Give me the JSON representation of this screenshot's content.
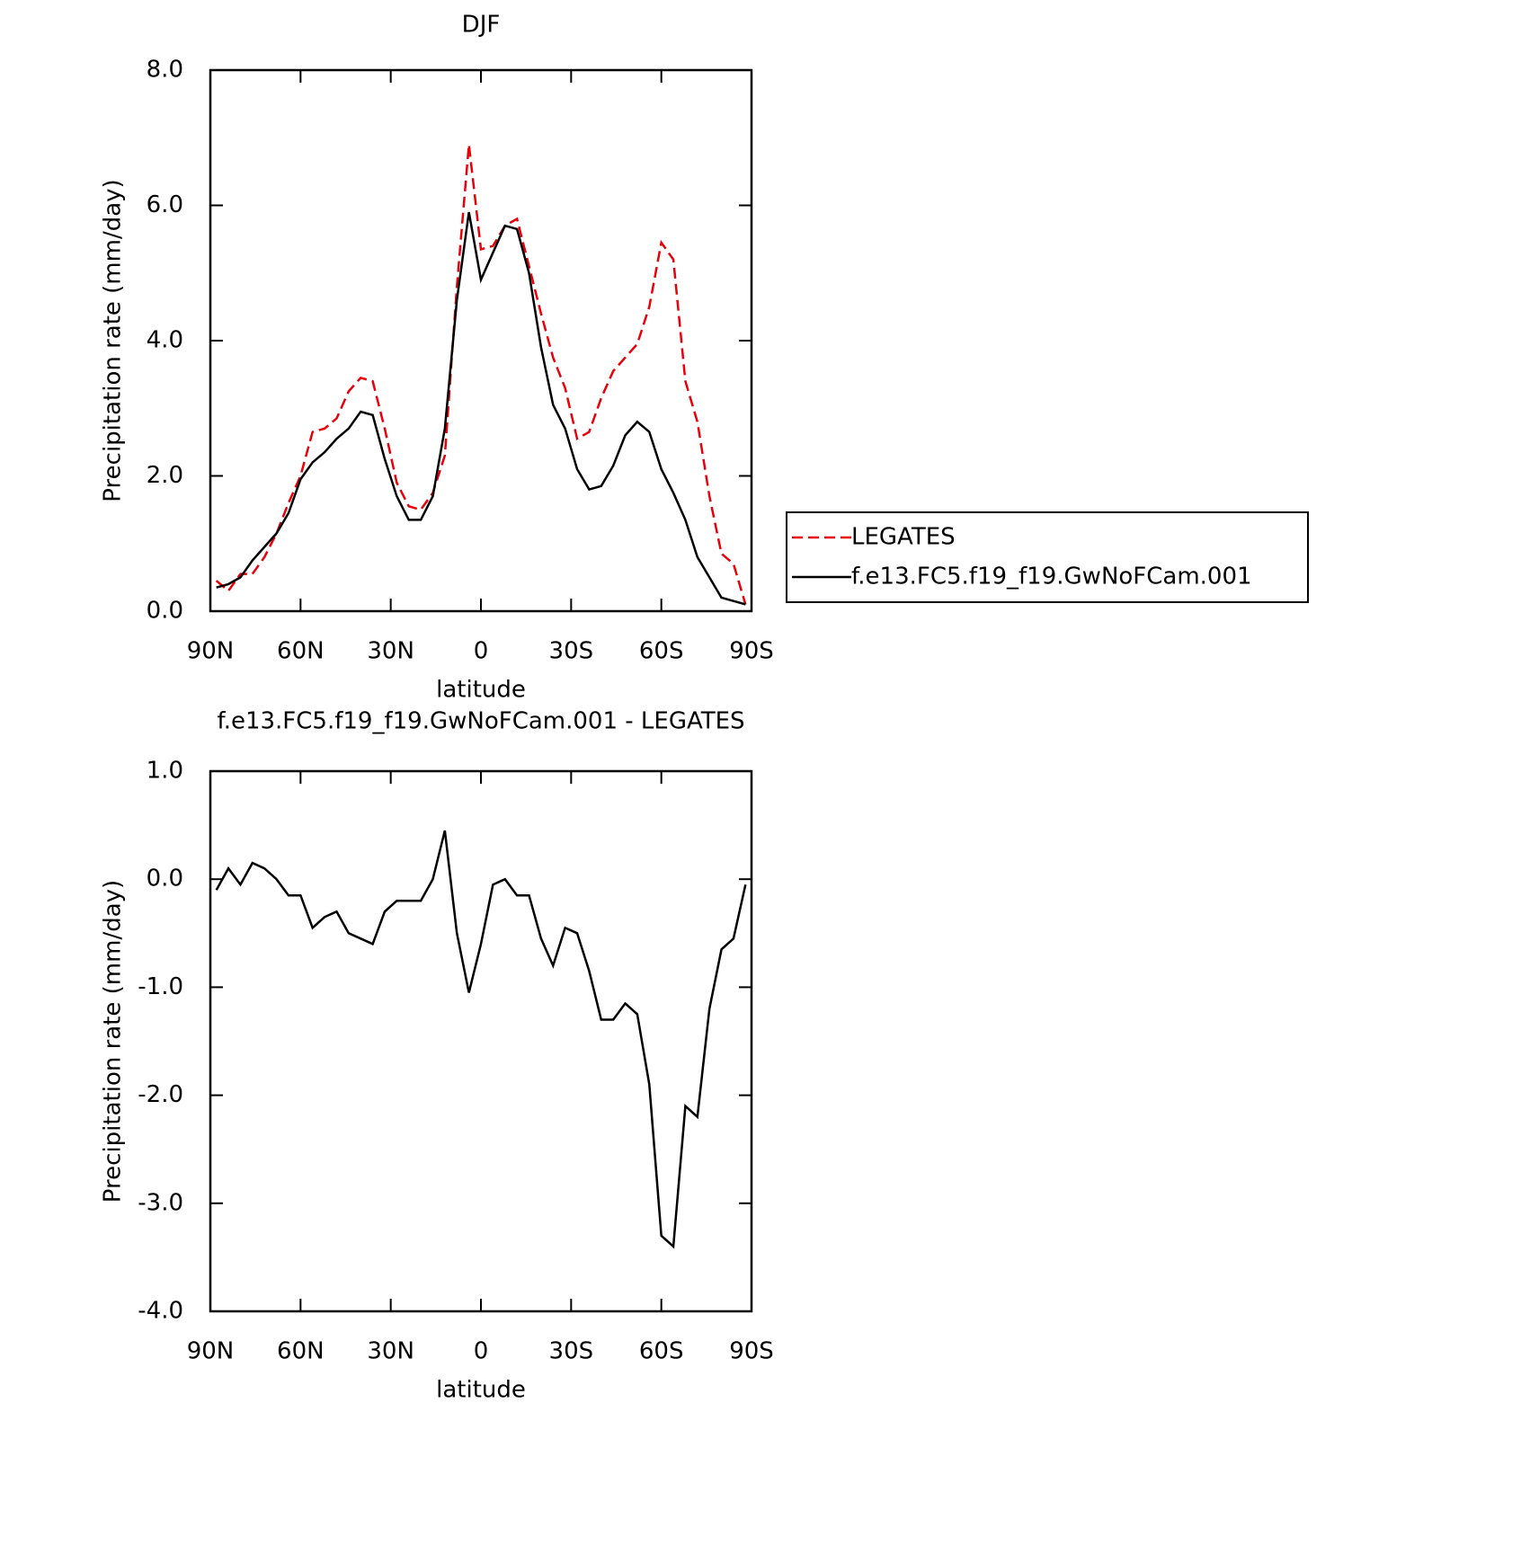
{
  "chart_data": [
    {
      "type": "line",
      "title": "DJF",
      "xlabel": "latitude",
      "ylabel": "Precipitation rate (mm/day)",
      "x": [
        88,
        84,
        80,
        76,
        72,
        68,
        64,
        60,
        56,
        52,
        48,
        44,
        40,
        36,
        32,
        28,
        24,
        20,
        16,
        12,
        8,
        4,
        0,
        -4,
        -8,
        -12,
        -16,
        -20,
        -24,
        -28,
        -32,
        -36,
        -40,
        -44,
        -48,
        -52,
        -56,
        -60,
        -64,
        -68,
        -72,
        -76,
        -80,
        -84,
        -88
      ],
      "series": [
        {
          "name": "LEGATES",
          "color": "#e8000b",
          "dashed": true,
          "values": [
            0.45,
            0.3,
            0.55,
            0.55,
            0.8,
            1.15,
            1.6,
            2.0,
            2.65,
            2.7,
            2.85,
            3.25,
            3.45,
            3.4,
            2.7,
            1.9,
            1.55,
            1.5,
            1.75,
            2.3,
            4.8,
            6.9,
            5.35,
            5.4,
            5.7,
            5.8,
            5.1,
            4.4,
            3.75,
            3.3,
            2.55,
            2.65,
            3.15,
            3.55,
            3.75,
            3.95,
            4.5,
            5.45,
            5.2,
            3.4,
            2.8,
            1.7,
            0.85,
            0.7,
            0.1
          ]
        },
        {
          "name": "f.e13.FC5.f19_f19.GwNoFCam.001",
          "color": "#000000",
          "dashed": false,
          "values": [
            0.35,
            0.4,
            0.5,
            0.75,
            0.95,
            1.15,
            1.45,
            1.95,
            2.2,
            2.35,
            2.55,
            2.7,
            2.95,
            2.9,
            2.25,
            1.7,
            1.35,
            1.35,
            1.7,
            2.7,
            4.6,
            5.9,
            4.9,
            5.3,
            5.7,
            5.65,
            5.0,
            3.9,
            3.05,
            2.7,
            2.1,
            1.8,
            1.85,
            2.15,
            2.6,
            2.8,
            2.65,
            2.1,
            1.75,
            1.35,
            0.8,
            0.5,
            0.2,
            0.15,
            0.1
          ]
        }
      ],
      "xlim": [
        90,
        -90
      ],
      "xticks": [
        {
          "value": 90,
          "label": "90N"
        },
        {
          "value": 60,
          "label": "60N"
        },
        {
          "value": 30,
          "label": "30N"
        },
        0,
        {
          "value": -30,
          "label": "30S"
        },
        {
          "value": -60,
          "label": "60S"
        },
        {
          "value": -90,
          "label": "90S"
        }
      ],
      "ylim": [
        0,
        8
      ],
      "yticks": [
        {
          "value": 0,
          "label": "0.0"
        },
        {
          "value": 2,
          "label": "2.0"
        },
        {
          "value": 4,
          "label": "4.0"
        },
        {
          "value": 6,
          "label": "6.0"
        },
        {
          "value": 8,
          "label": "8.0"
        }
      ],
      "legend": "right"
    },
    {
      "type": "line",
      "title": "f.e13.FC5.f19_f19.GwNoFCam.001 - LEGATES",
      "xlabel": "latitude",
      "ylabel": "Precipitation rate (mm/day)",
      "x": [
        88,
        84,
        80,
        76,
        72,
        68,
        64,
        60,
        56,
        52,
        48,
        44,
        40,
        36,
        32,
        28,
        24,
        20,
        16,
        12,
        8,
        4,
        0,
        -4,
        -8,
        -12,
        -16,
        -20,
        -24,
        -28,
        -32,
        -36,
        -40,
        -44,
        -48,
        -52,
        -56,
        -60,
        -64,
        -68,
        -72,
        -76,
        -80,
        -84,
        -88
      ],
      "series": [
        {
          "color": "#000000",
          "dashed": false,
          "values": [
            -0.1,
            0.1,
            -0.05,
            0.15,
            0.1,
            0.0,
            -0.15,
            -0.15,
            -0.45,
            -0.35,
            -0.3,
            -0.5,
            -0.55,
            -0.6,
            -0.3,
            -0.2,
            -0.2,
            -0.2,
            0.0,
            0.45,
            -0.5,
            -1.05,
            -0.6,
            -0.05,
            0.0,
            -0.15,
            -0.15,
            -0.55,
            -0.8,
            -0.45,
            -0.5,
            -0.85,
            -1.3,
            -1.3,
            -1.15,
            -1.25,
            -1.9,
            -3.3,
            -3.4,
            -2.1,
            -2.2,
            -1.2,
            -0.65,
            -0.55,
            -0.05
          ]
        }
      ],
      "xlim": [
        90,
        -90
      ],
      "xticks": [
        {
          "value": 90,
          "label": "90N"
        },
        {
          "value": 60,
          "label": "60N"
        },
        {
          "value": 30,
          "label": "30N"
        },
        0,
        {
          "value": -30,
          "label": "30S"
        },
        {
          "value": -60,
          "label": "60S"
        },
        {
          "value": -90,
          "label": "90S"
        }
      ],
      "ylim": [
        -4,
        1
      ],
      "yticks": [
        {
          "value": -4,
          "label": "-4.0"
        },
        {
          "value": -3,
          "label": "-3.0"
        },
        {
          "value": -2,
          "label": "-2.0"
        },
        {
          "value": -1,
          "label": "-1.0"
        },
        {
          "value": 0,
          "label": "0.0"
        },
        {
          "value": 1,
          "label": "1.0"
        }
      ]
    }
  ]
}
